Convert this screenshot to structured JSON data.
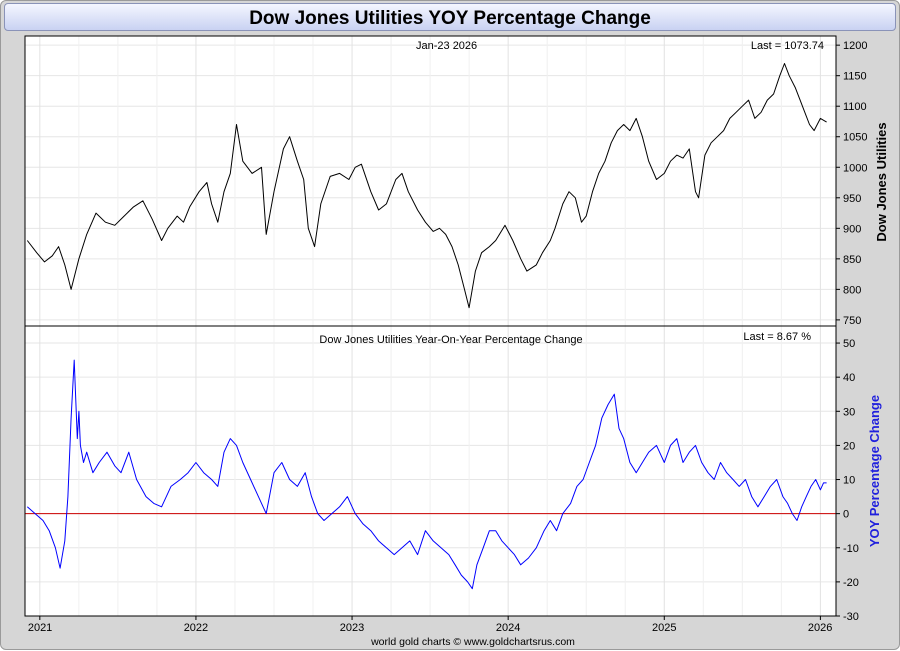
{
  "title": "Dow Jones Utilities YOY Percentage Change",
  "footer": "world gold charts © www.goldchartsrus.com",
  "colors": {
    "price_line": "#000000",
    "yoy_line": "#0000ff",
    "zero_line": "#cc0000",
    "title_bg": "#dde3fb"
  },
  "chart_data": [
    {
      "type": "line",
      "date_label": "Jan-23  2026",
      "last_label": "Last = 1073.74",
      "ylabel": "Dow Jones Utilities",
      "ylim": [
        740,
        1215
      ],
      "yticks": [
        750,
        800,
        850,
        900,
        950,
        1000,
        1050,
        1100,
        1150,
        1200
      ],
      "x_ticks": [
        "2021",
        "2022",
        "2023",
        "2024",
        "2025",
        "2026"
      ],
      "grid": true,
      "series": [
        {
          "x": [
            2020.92,
            2020.98,
            2021.03,
            2021.08,
            2021.12,
            2021.16,
            2021.2,
            2021.25,
            2021.3,
            2021.36,
            2021.42,
            2021.48,
            2021.54,
            2021.6,
            2021.66,
            2021.72,
            2021.78,
            2021.82,
            2021.88,
            2021.92,
            2021.96,
            2022.02,
            2022.07,
            2022.1,
            2022.14,
            2022.18,
            2022.22,
            2022.26,
            2022.3,
            2022.36,
            2022.42,
            2022.45,
            2022.5,
            2022.56,
            2022.6,
            2022.65,
            2022.69,
            2022.72,
            2022.76,
            2022.8,
            2022.86,
            2022.92,
            2022.98,
            2023.02,
            2023.06,
            2023.12,
            2023.17,
            2023.22,
            2023.28,
            2023.32,
            2023.36,
            2023.42,
            2023.47,
            2023.52,
            2023.56,
            2023.6,
            2023.64,
            2023.68,
            2023.72,
            2023.75,
            2023.79,
            2023.83,
            2023.88,
            2023.92,
            2023.98,
            2024.03,
            2024.08,
            2024.12,
            2024.18,
            2024.22,
            2024.27,
            2024.3,
            2024.35,
            2024.39,
            2024.43,
            2024.47,
            2024.5,
            2024.54,
            2024.58,
            2024.62,
            2024.66,
            2024.7,
            2024.74,
            2024.78,
            2024.82,
            2024.86,
            2024.9,
            2024.95,
            2025.0,
            2025.04,
            2025.08,
            2025.12,
            2025.16,
            2025.2,
            2025.22,
            2025.26,
            2025.3,
            2025.34,
            2025.38,
            2025.42,
            2025.46,
            2025.5,
            2025.54,
            2025.58,
            2025.62,
            2025.66,
            2025.7,
            2025.74,
            2025.77,
            2025.8,
            2025.84,
            2025.87,
            2025.9,
            2025.93,
            2025.96,
            2026.0,
            2026.04
          ],
          "values": [
            880,
            860,
            845,
            855,
            870,
            840,
            800,
            850,
            890,
            925,
            910,
            905,
            920,
            935,
            945,
            915,
            880,
            900,
            920,
            910,
            935,
            960,
            975,
            940,
            910,
            960,
            990,
            1070,
            1010,
            990,
            1000,
            890,
            960,
            1030,
            1050,
            1010,
            980,
            900,
            870,
            940,
            985,
            990,
            980,
            1000,
            1005,
            960,
            930,
            940,
            980,
            990,
            960,
            930,
            910,
            895,
            900,
            890,
            870,
            840,
            800,
            770,
            830,
            860,
            870,
            880,
            905,
            880,
            850,
            830,
            840,
            860,
            880,
            900,
            940,
            960,
            950,
            910,
            920,
            960,
            990,
            1010,
            1040,
            1060,
            1070,
            1060,
            1080,
            1050,
            1010,
            980,
            990,
            1010,
            1020,
            1015,
            1030,
            960,
            950,
            1020,
            1040,
            1050,
            1060,
            1080,
            1090,
            1100,
            1110,
            1080,
            1090,
            1110,
            1120,
            1150,
            1170,
            1150,
            1130,
            1110,
            1090,
            1070,
            1060,
            1080,
            1074
          ]
        }
      ]
    },
    {
      "type": "line",
      "title": "Dow Jones Utilities Year-On-Year Percentage Change",
      "last_label": "Last = 8.67 %",
      "ylabel": "YOY Percentage Change",
      "ylim": [
        -30,
        55
      ],
      "yticks": [
        -30,
        -20,
        -10,
        0,
        10,
        20,
        30,
        40,
        50
      ],
      "x_ticks": [
        "2021",
        "2022",
        "2023",
        "2024",
        "2025",
        "2026"
      ],
      "grid": true,
      "series": [
        {
          "x": [
            2020.92,
            2020.97,
            2021.02,
            2021.06,
            2021.1,
            2021.13,
            2021.16,
            2021.18,
            2021.2,
            2021.22,
            2021.24,
            2021.25,
            2021.26,
            2021.28,
            2021.3,
            2021.34,
            2021.38,
            2021.43,
            2021.48,
            2021.52,
            2021.57,
            2021.62,
            2021.68,
            2021.73,
            2021.78,
            2021.84,
            2021.9,
            2021.95,
            2022.0,
            2022.05,
            2022.1,
            2022.14,
            2022.18,
            2022.22,
            2022.26,
            2022.3,
            2022.35,
            2022.4,
            2022.45,
            2022.5,
            2022.55,
            2022.6,
            2022.65,
            2022.7,
            2022.74,
            2022.78,
            2022.82,
            2022.87,
            2022.92,
            2022.97,
            2023.02,
            2023.07,
            2023.12,
            2023.17,
            2023.22,
            2023.27,
            2023.32,
            2023.37,
            2023.42,
            2023.47,
            2023.52,
            2023.57,
            2023.62,
            2023.66,
            2023.7,
            2023.74,
            2023.77,
            2023.8,
            2023.84,
            2023.88,
            2023.92,
            2023.96,
            2024.0,
            2024.04,
            2024.08,
            2024.13,
            2024.18,
            2024.23,
            2024.27,
            2024.31,
            2024.35,
            2024.4,
            2024.44,
            2024.48,
            2024.52,
            2024.56,
            2024.6,
            2024.64,
            2024.68,
            2024.71,
            2024.74,
            2024.78,
            2024.82,
            2024.86,
            2024.9,
            2024.95,
            2025.0,
            2025.04,
            2025.08,
            2025.12,
            2025.16,
            2025.2,
            2025.24,
            2025.28,
            2025.32,
            2025.36,
            2025.4,
            2025.44,
            2025.48,
            2025.52,
            2025.56,
            2025.6,
            2025.64,
            2025.68,
            2025.72,
            2025.76,
            2025.79,
            2025.82,
            2025.85,
            2025.88,
            2025.91,
            2025.94,
            2025.97,
            2026.0,
            2026.02,
            2026.04
          ],
          "values": [
            2,
            0,
            -2,
            -5,
            -10,
            -16,
            -8,
            5,
            28,
            45,
            22,
            30,
            20,
            15,
            18,
            12,
            15,
            18,
            14,
            12,
            18,
            10,
            5,
            3,
            2,
            8,
            10,
            12,
            15,
            12,
            10,
            8,
            18,
            22,
            20,
            15,
            10,
            5,
            0,
            12,
            15,
            10,
            8,
            12,
            5,
            0,
            -2,
            0,
            2,
            5,
            0,
            -3,
            -5,
            -8,
            -10,
            -12,
            -10,
            -8,
            -12,
            -5,
            -8,
            -10,
            -12,
            -15,
            -18,
            -20,
            -22,
            -15,
            -10,
            -5,
            -5,
            -8,
            -10,
            -12,
            -15,
            -13,
            -10,
            -5,
            -2,
            -5,
            0,
            3,
            8,
            10,
            15,
            20,
            28,
            32,
            35,
            25,
            22,
            15,
            12,
            15,
            18,
            20,
            15,
            20,
            22,
            15,
            18,
            20,
            15,
            12,
            10,
            15,
            12,
            10,
            8,
            10,
            5,
            2,
            5,
            8,
            10,
            5,
            3,
            0,
            -2,
            2,
            5,
            8,
            10,
            7,
            9,
            9
          ]
        }
      ]
    }
  ]
}
